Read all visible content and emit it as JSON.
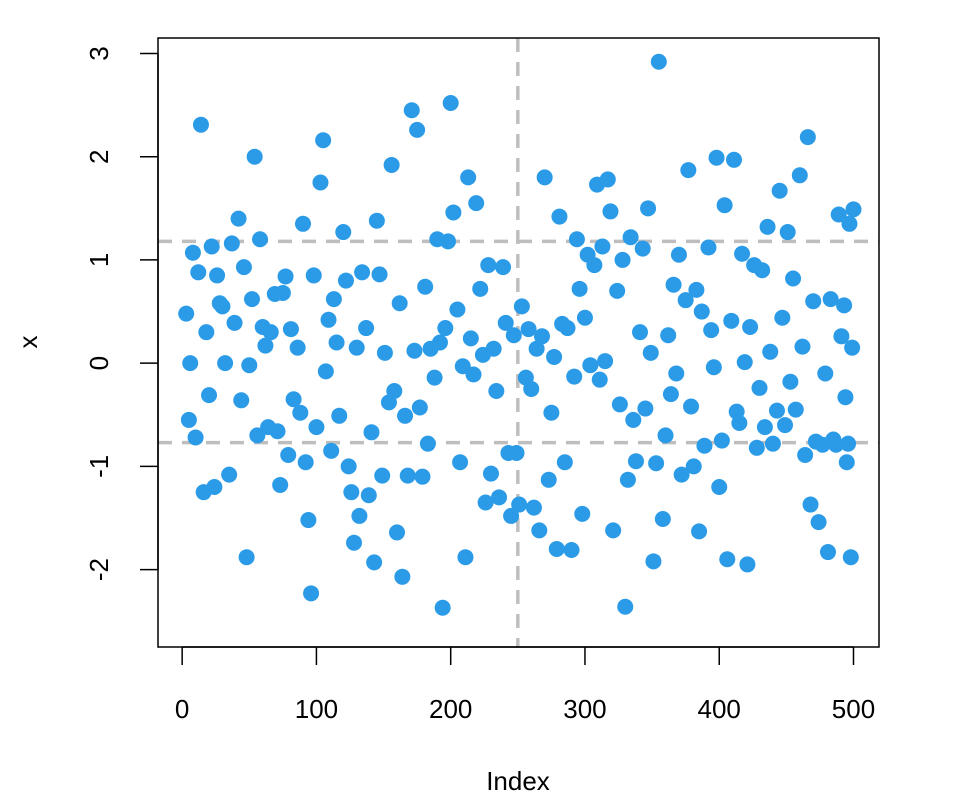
{
  "chart_data": {
    "type": "scatter",
    "title": "",
    "xlabel": "Index",
    "ylabel": "x",
    "xlim": [
      -18,
      519
    ],
    "ylim": [
      -2.75,
      3.15
    ],
    "x_ticks": [
      0,
      100,
      200,
      300,
      400,
      500
    ],
    "y_ticks": [
      -2,
      -1,
      0,
      1,
      2,
      3
    ],
    "x_tick_labels": [
      "0",
      "100",
      "200",
      "300",
      "400",
      "500"
    ],
    "y_tick_labels": [
      "-2",
      "-1",
      "0",
      "1",
      "2",
      "3"
    ],
    "grid": false,
    "point_color": "#2b9be8",
    "reference_line_color": "#bebebe",
    "reference_lines": {
      "vertical": [
        250
      ],
      "horizontal": [
        1.18,
        -0.77
      ]
    },
    "series": [
      {
        "values": [
          [
            3,
            0.48
          ],
          [
            5,
            -0.55
          ],
          [
            6,
            0
          ],
          [
            8,
            1.07
          ],
          [
            10,
            -0.72
          ],
          [
            12,
            0.88
          ],
          [
            14,
            2.31
          ],
          [
            16,
            -1.25
          ],
          [
            18,
            0.3
          ],
          [
            20,
            -0.31
          ],
          [
            22,
            1.13
          ],
          [
            24,
            -1.2
          ],
          [
            26,
            0.85
          ],
          [
            28,
            0.58
          ],
          [
            30,
            0.55
          ],
          [
            32,
            0
          ],
          [
            35,
            -1.08
          ],
          [
            37,
            1.16
          ],
          [
            39,
            0.39
          ],
          [
            42,
            1.4
          ],
          [
            44,
            -0.36
          ],
          [
            46,
            0.93
          ],
          [
            48,
            -1.88
          ],
          [
            50,
            -0.02
          ],
          [
            52,
            0.62
          ],
          [
            54,
            2
          ],
          [
            56,
            -0.7
          ],
          [
            58,
            1.2
          ],
          [
            60,
            0.35
          ],
          [
            62,
            0.17
          ],
          [
            64,
            -0.62
          ],
          [
            66,
            0.3
          ],
          [
            69,
            0.67
          ],
          [
            71,
            -0.66
          ],
          [
            73,
            -1.18
          ],
          [
            75,
            0.68
          ],
          [
            77,
            0.84
          ],
          [
            79,
            -0.89
          ],
          [
            81,
            0.33
          ],
          [
            83,
            -0.35
          ],
          [
            86,
            0.15
          ],
          [
            88,
            -0.48
          ],
          [
            90,
            1.35
          ],
          [
            92,
            -0.96
          ],
          [
            94,
            -1.52
          ],
          [
            96,
            -2.23
          ],
          [
            98,
            0.85
          ],
          [
            100,
            -0.62
          ],
          [
            103,
            1.75
          ],
          [
            105,
            2.16
          ],
          [
            107,
            -0.08
          ],
          [
            109,
            0.42
          ],
          [
            111,
            -0.85
          ],
          [
            113,
            0.62
          ],
          [
            115,
            0.2
          ],
          [
            117,
            -0.51
          ],
          [
            120,
            1.27
          ],
          [
            122,
            0.8
          ],
          [
            124,
            -1.0
          ],
          [
            126,
            -1.25
          ],
          [
            128,
            -1.74
          ],
          [
            130,
            0.15
          ],
          [
            132,
            -1.48
          ],
          [
            134,
            0.88
          ],
          [
            137,
            0.34
          ],
          [
            139,
            -1.28
          ],
          [
            141,
            -0.67
          ],
          [
            143,
            -1.93
          ],
          [
            145,
            1.38
          ],
          [
            147,
            0.86
          ],
          [
            149,
            -1.09
          ],
          [
            151,
            0.1
          ],
          [
            154,
            -0.38
          ],
          [
            156,
            1.92
          ],
          [
            158,
            -0.27
          ],
          [
            160,
            -1.64
          ],
          [
            162,
            0.58
          ],
          [
            164,
            -2.07
          ],
          [
            166,
            -0.51
          ],
          [
            168,
            -1.09
          ],
          [
            171,
            2.45
          ],
          [
            173,
            0.12
          ],
          [
            175,
            2.26
          ],
          [
            177,
            -0.43
          ],
          [
            179,
            -1.1
          ],
          [
            181,
            0.74
          ],
          [
            183,
            -0.78
          ],
          [
            185,
            0.14
          ],
          [
            188,
            -0.14
          ],
          [
            190,
            1.2
          ],
          [
            192,
            0.2
          ],
          [
            194,
            -2.37
          ],
          [
            196,
            0.34
          ],
          [
            198,
            1.18
          ],
          [
            200,
            2.52
          ],
          [
            202,
            1.46
          ],
          [
            205,
            0.52
          ],
          [
            207,
            -0.96
          ],
          [
            209,
            -0.03
          ],
          [
            211,
            -1.88
          ],
          [
            213,
            1.8
          ],
          [
            215,
            0.24
          ],
          [
            217,
            -0.11
          ],
          [
            219,
            1.55
          ],
          [
            222,
            0.72
          ],
          [
            224,
            0.08
          ],
          [
            226,
            -1.35
          ],
          [
            228,
            0.95
          ],
          [
            230,
            -1.07
          ],
          [
            232,
            0.14
          ],
          [
            234,
            -0.27
          ],
          [
            236,
            -1.3
          ],
          [
            239,
            0.93
          ],
          [
            241,
            0.39
          ],
          [
            243,
            -0.87
          ],
          [
            245,
            -1.48
          ],
          [
            247,
            0.27
          ],
          [
            249,
            -0.87
          ],
          [
            251,
            -1.37
          ],
          [
            253,
            0.55
          ],
          [
            256,
            -0.14
          ],
          [
            258,
            0.33
          ],
          [
            260,
            -0.25
          ],
          [
            262,
            -1.4
          ],
          [
            264,
            0.14
          ],
          [
            266,
            -1.62
          ],
          [
            268,
            0.26
          ],
          [
            270,
            1.8
          ],
          [
            273,
            -1.13
          ],
          [
            275,
            -0.48
          ],
          [
            277,
            0.06
          ],
          [
            279,
            -1.8
          ],
          [
            281,
            1.42
          ],
          [
            283,
            0.38
          ],
          [
            285,
            -0.96
          ],
          [
            287,
            0.34
          ],
          [
            290,
            -1.81
          ],
          [
            292,
            -0.13
          ],
          [
            294,
            1.2
          ],
          [
            296,
            0.72
          ],
          [
            298,
            -1.46
          ],
          [
            300,
            0.44
          ],
          [
            302,
            1.05
          ],
          [
            304,
            -0.02
          ],
          [
            307,
            0.95
          ],
          [
            309,
            1.73
          ],
          [
            311,
            -0.16
          ],
          [
            313,
            1.13
          ],
          [
            315,
            0.02
          ],
          [
            317,
            1.78
          ],
          [
            319,
            1.47
          ],
          [
            321,
            -1.62
          ],
          [
            324,
            0.7
          ],
          [
            326,
            -0.4
          ],
          [
            328,
            1.0
          ],
          [
            330,
            -2.36
          ],
          [
            332,
            -1.13
          ],
          [
            334,
            1.22
          ],
          [
            336,
            -0.55
          ],
          [
            338,
            -0.95
          ],
          [
            341,
            0.3
          ],
          [
            343,
            1.11
          ],
          [
            345,
            -0.44
          ],
          [
            347,
            1.5
          ],
          [
            349,
            0.1
          ],
          [
            351,
            -1.92
          ],
          [
            353,
            -0.97
          ],
          [
            355,
            2.92
          ],
          [
            358,
            -1.51
          ],
          [
            360,
            -0.7
          ],
          [
            362,
            0.27
          ],
          [
            364,
            -0.3
          ],
          [
            366,
            0.76
          ],
          [
            368,
            -0.1
          ],
          [
            370,
            1.05
          ],
          [
            372,
            -1.08
          ],
          [
            375,
            0.61
          ],
          [
            377,
            1.87
          ],
          [
            379,
            -0.42
          ],
          [
            381,
            -1.0
          ],
          [
            383,
            0.71
          ],
          [
            385,
            -1.63
          ],
          [
            387,
            0.5
          ],
          [
            389,
            -0.8
          ],
          [
            392,
            1.12
          ],
          [
            394,
            0.32
          ],
          [
            396,
            -0.04
          ],
          [
            398,
            1.99
          ],
          [
            400,
            -1.2
          ],
          [
            402,
            -0.75
          ],
          [
            404,
            1.53
          ],
          [
            406,
            -1.9
          ],
          [
            409,
            0.41
          ],
          [
            411,
            1.97
          ],
          [
            413,
            -0.47
          ],
          [
            415,
            -0.58
          ],
          [
            417,
            1.06
          ],
          [
            419,
            0.01
          ],
          [
            421,
            -1.95
          ],
          [
            423,
            0.35
          ],
          [
            426,
            0.95
          ],
          [
            428,
            -0.82
          ],
          [
            430,
            -0.24
          ],
          [
            432,
            0.9
          ],
          [
            434,
            -0.62
          ],
          [
            436,
            1.32
          ],
          [
            438,
            0.11
          ],
          [
            440,
            -0.78
          ],
          [
            443,
            -0.46
          ],
          [
            445,
            1.67
          ],
          [
            447,
            0.44
          ],
          [
            449,
            -0.6
          ],
          [
            451,
            1.27
          ],
          [
            453,
            -0.18
          ],
          [
            455,
            0.82
          ],
          [
            457,
            -0.45
          ],
          [
            460,
            1.82
          ],
          [
            462,
            0.16
          ],
          [
            464,
            -0.89
          ],
          [
            466,
            2.19
          ],
          [
            468,
            -1.37
          ],
          [
            470,
            0.6
          ],
          [
            472,
            -0.76
          ],
          [
            474,
            -1.54
          ],
          [
            477,
            -0.79
          ],
          [
            479,
            -0.1
          ],
          [
            481,
            -1.83
          ],
          [
            483,
            0.62
          ],
          [
            485,
            -0.74
          ],
          [
            487,
            -0.79
          ],
          [
            489,
            1.44
          ],
          [
            491,
            0.26
          ],
          [
            494,
            -0.33
          ],
          [
            496,
            -0.78
          ],
          [
            498,
            -1.88
          ],
          [
            500,
            1.49
          ],
          [
            499,
            0.15
          ],
          [
            497,
            1.35
          ],
          [
            495,
            -0.96
          ],
          [
            493,
            0.56
          ]
        ]
      }
    ]
  }
}
